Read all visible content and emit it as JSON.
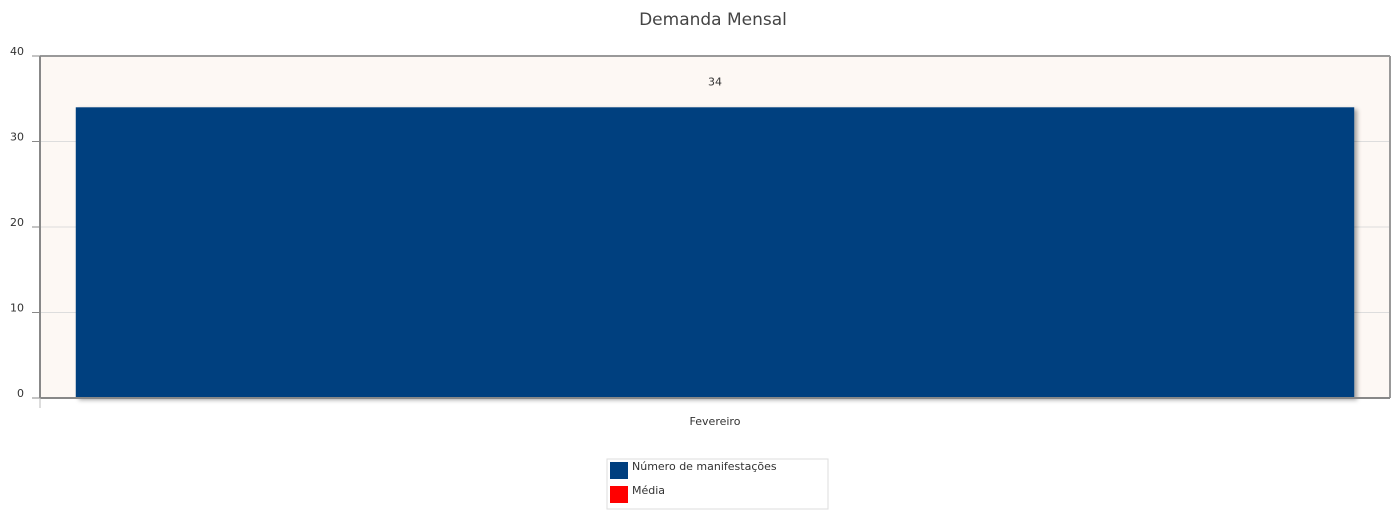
{
  "chart_data": {
    "type": "bar",
    "title": "Demanda Mensal",
    "categories": [
      "Fevereiro"
    ],
    "series": [
      {
        "name": "Número de manifestações",
        "color": "#003f7f",
        "values": [
          34
        ]
      },
      {
        "name": "Média",
        "color": "#ff0000",
        "values": [
          null
        ]
      }
    ],
    "ylim": [
      0,
      40
    ],
    "yticks": [
      0,
      10,
      20,
      30,
      40
    ],
    "grid": true,
    "legend": "bottom"
  }
}
